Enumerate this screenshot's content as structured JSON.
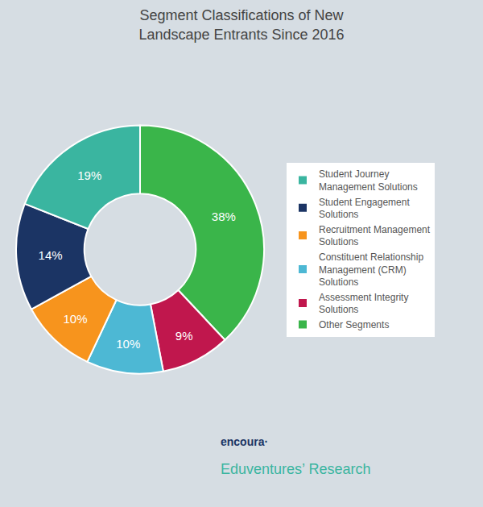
{
  "chart_data": {
    "type": "pie",
    "title": "Segment Classifications of New\nLandscape Entrants Since 2016",
    "categories": [
      "Other Segments",
      "Assessment Integrity\nSolutions",
      "Constituent Relationship\nManagement (CRM)\nSolutions",
      "Recruitment Management\nSolutions",
      "Student Engagement\nSolutions",
      "Student Journey\nManagement Solutions"
    ],
    "values": [
      38,
      9,
      10,
      10,
      14,
      19
    ],
    "value_labels": [
      "38%",
      "9%",
      "10%",
      "10%",
      "14%",
      "19%"
    ],
    "colors": [
      "#3ab54a",
      "#c0174d",
      "#4db8d4",
      "#f7941d",
      "#1b3464",
      "#3ab5a0"
    ],
    "data_labels": true,
    "legend": "right",
    "annotations": [
      "encoura·",
      "Eduventures’ Research"
    ]
  }
}
